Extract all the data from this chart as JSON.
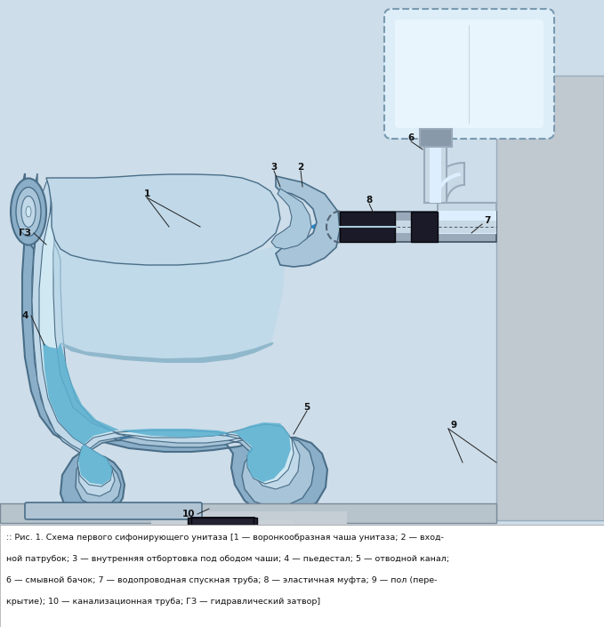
{
  "bg_color": "#cddde9",
  "body_outer": "#8aaec8",
  "body_mid": "#a8c4d8",
  "body_inner": "#c0d8e8",
  "bowl_cavity": "#d0e8f2",
  "water_blue": "#5ab0d0",
  "water_light": "#88c8e0",
  "water_upper": "#b0d8ea",
  "pipe_gray": "#9aaabb",
  "pipe_light": "#c8d8e4",
  "pipe_black": "#1a1a28",
  "tank_fill": "#ddeef8",
  "tank_stroke": "#7a9ab0",
  "floor_color": "#b8c4cc",
  "wall_color": "#c0c8d0",
  "arrow_color": "#2288cc",
  "label_color": "#111111",
  "fig_width": 6.79,
  "fig_height": 7.05,
  "dpi": 100,
  "cap1": ":: Рис. 1. Схема первого сифонирующего унитаза [1 — воронкообразная чаша унитаза; 2 — вход-",
  "cap2": "ной патрубок; 3 — внутренняя отбортовка под ободом чаши; 4 — пьедестал; 5 — отводной канал;",
  "cap3": "6 — смывной бачок; 7 — водопроводная спускная труба; 8 — эластичная муфта; 9 — пол (пере-",
  "cap4": "крытие); 10 — канализационная труба; ГЗ — гидравлический затвор]"
}
